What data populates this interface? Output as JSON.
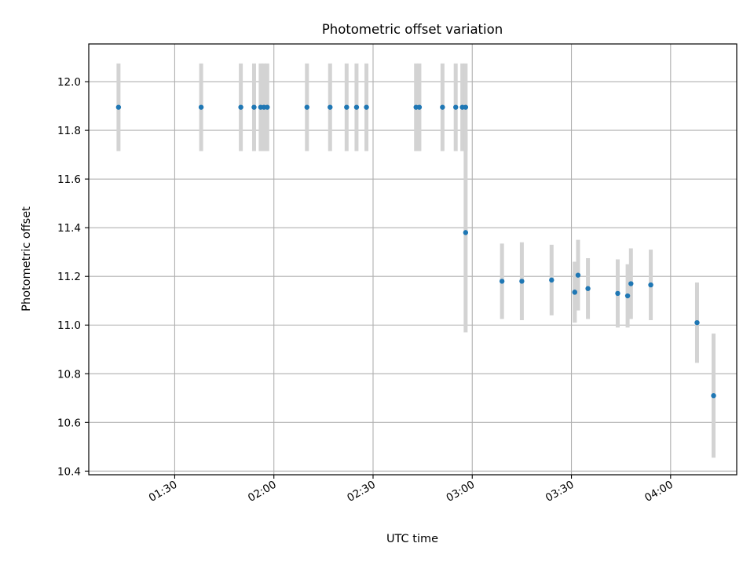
{
  "chart_data": {
    "type": "scatter",
    "title": "Photometric offset variation",
    "xlabel": "UTC time",
    "ylabel": "Photometric offset",
    "x_tick_labels": [
      "01:30",
      "02:00",
      "02:30",
      "03:00",
      "03:30",
      "04:00"
    ],
    "x_ticks": [
      "01:30",
      "02:00",
      "02:30",
      "03:00",
      "03:30",
      "04:00"
    ],
    "y_ticks": [
      10.4,
      10.6,
      10.8,
      11.0,
      11.2,
      11.4,
      11.6,
      11.8,
      12.0
    ],
    "y_tick_labels": [
      "10.4",
      "10.6",
      "10.8",
      "11.0",
      "11.2",
      "11.4",
      "11.6",
      "11.8",
      "12.0"
    ],
    "xlim": [
      "01:04",
      "04:20"
    ],
    "ylim": [
      10.385,
      12.155
    ],
    "grid": true,
    "colors": {
      "point": "#1f77b4",
      "errorbar": "#d3d3d3",
      "grid": "#b0b0b0"
    },
    "series": [
      {
        "x": [
          "01:13",
          "01:38",
          "01:50",
          "01:54",
          "01:56",
          "01:57",
          "01:58",
          "02:10",
          "02:17",
          "02:22",
          "02:25",
          "02:28",
          "02:43",
          "02:44",
          "02:51",
          "02:55",
          "02:57",
          "02:58",
          "02:58",
          "03:09",
          "03:15",
          "03:24",
          "03:31",
          "03:31",
          "03:32",
          "03:35",
          "03:44",
          "03:47",
          "03:48",
          "03:54",
          "04:08",
          "04:13"
        ],
        "y": [
          11.895,
          11.895,
          11.895,
          11.895,
          11.895,
          11.895,
          11.895,
          11.895,
          11.895,
          11.895,
          11.895,
          11.895,
          11.895,
          11.895,
          11.895,
          11.895,
          11.895,
          11.895,
          11.38,
          11.18,
          11.18,
          11.185,
          11.135,
          11.135,
          11.205,
          11.15,
          11.13,
          11.12,
          11.17,
          11.165,
          11.01,
          10.71
        ],
        "yerr": [
          0.18,
          0.18,
          0.18,
          0.18,
          0.18,
          0.18,
          0.18,
          0.18,
          0.18,
          0.18,
          0.18,
          0.18,
          0.18,
          0.18,
          0.18,
          0.18,
          0.18,
          0.18,
          0.41,
          0.155,
          0.16,
          0.145,
          0.125,
          0.125,
          0.145,
          0.125,
          0.14,
          0.13,
          0.145,
          0.145,
          0.165,
          0.255
        ]
      }
    ]
  }
}
